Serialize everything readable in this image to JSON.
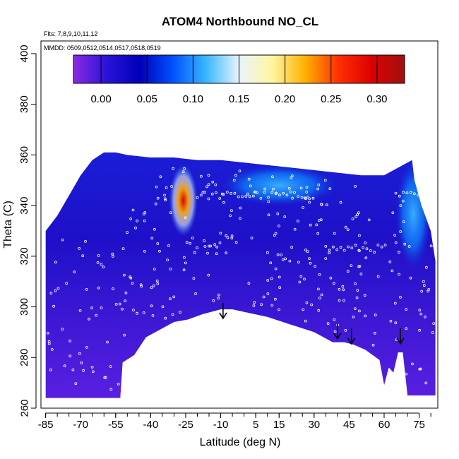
{
  "chart_data": {
    "type": "heatmap",
    "title": "ATOM4 Northbound NO_CL",
    "notes": [
      "Flts: 7,8,9,10,11,12",
      "MMDD: 0509,0512,0514,0517,0518,0519"
    ],
    "xlabel": "Latitude (deg N)",
    "ylabel": "Theta (C)",
    "xlim": [
      -87,
      83
    ],
    "ylim": [
      260,
      405
    ],
    "x_ticks": [
      -85,
      -70,
      -55,
      -40,
      -25,
      -10,
      5,
      15,
      30,
      45,
      60,
      75
    ],
    "y_ticks": [
      260,
      280,
      300,
      320,
      340,
      360,
      380,
      400
    ],
    "colorbar": {
      "range": [
        -0.03,
        0.33
      ],
      "ticks": [
        0.0,
        0.05,
        0.1,
        0.15,
        0.2,
        0.25,
        0.3
      ],
      "tick_labels": [
        "0.00",
        "0.05",
        "0.10",
        "0.15",
        "0.20",
        "0.25",
        "0.30"
      ],
      "colors": [
        "#8a2be2",
        "#2a13d8",
        "#0000b8",
        "#0050ff",
        "#39b6ff",
        "#e8f4ff",
        "#fff6a0",
        "#ffb000",
        "#ff3000",
        "#dd0000",
        "#a01010"
      ]
    },
    "filled_region": {
      "upper": [
        [
          -85,
          330
        ],
        [
          -80,
          336
        ],
        [
          -75,
          344
        ],
        [
          -70,
          352
        ],
        [
          -65,
          358
        ],
        [
          -60,
          361
        ],
        [
          -55,
          361
        ],
        [
          -50,
          360
        ],
        [
          -40,
          359
        ],
        [
          -30,
          359
        ],
        [
          -20,
          358
        ],
        [
          -10,
          358
        ],
        [
          0,
          357
        ],
        [
          10,
          356
        ],
        [
          20,
          355
        ],
        [
          30,
          354
        ],
        [
          40,
          353
        ],
        [
          50,
          352
        ],
        [
          60,
          352
        ],
        [
          68,
          356
        ],
        [
          72,
          358
        ],
        [
          73,
          350
        ],
        [
          76,
          340
        ],
        [
          80,
          330
        ],
        [
          82,
          318
        ]
      ],
      "lower": [
        [
          -85,
          264
        ],
        [
          -53,
          264
        ],
        [
          -52,
          278
        ],
        [
          -47,
          281
        ],
        [
          -42,
          288
        ],
        [
          -30,
          294
        ],
        [
          -24,
          295
        ],
        [
          -18,
          297
        ],
        [
          -10,
          299
        ],
        [
          -5,
          299
        ],
        [
          0,
          298
        ],
        [
          10,
          296
        ],
        [
          20,
          293
        ],
        [
          30,
          290
        ],
        [
          38,
          286
        ],
        [
          43,
          286
        ],
        [
          47,
          285
        ],
        [
          52,
          283
        ],
        [
          58,
          279
        ],
        [
          60,
          269
        ],
        [
          62,
          276
        ],
        [
          64,
          274
        ],
        [
          66,
          282
        ],
        [
          68,
          282
        ],
        [
          70,
          265
        ],
        [
          75,
          265
        ],
        [
          82,
          265
        ]
      ]
    },
    "high_value_plumes": [
      {
        "lat_range": [
          -32,
          -20
        ],
        "theta_range": [
          328,
          356
        ],
        "peak_value": 0.3
      },
      {
        "lat_range": [
          -10,
          40
        ],
        "theta_range": [
          340,
          356
        ],
        "peak_value": 0.12
      },
      {
        "lat_range": [
          65,
          80
        ],
        "theta_range": [
          315,
          358
        ],
        "peak_value": 0.12
      }
    ],
    "markers": {
      "type": "down-arrow",
      "positions": [
        [
          -9,
          296
        ],
        [
          40,
          288
        ],
        [
          46,
          286
        ],
        [
          67,
          286
        ]
      ]
    },
    "observation_points": {
      "style": "small white circles",
      "approx_count": 320,
      "dense_layers": [
        {
          "lat_range": [
            -20,
            30
          ],
          "theta": 344
        },
        {
          "lat_range": [
            35,
            60
          ],
          "theta": 323
        },
        {
          "lat_range": [
            65,
            80
          ],
          "theta": 344
        }
      ]
    },
    "grid": false,
    "legend_position": "top"
  }
}
